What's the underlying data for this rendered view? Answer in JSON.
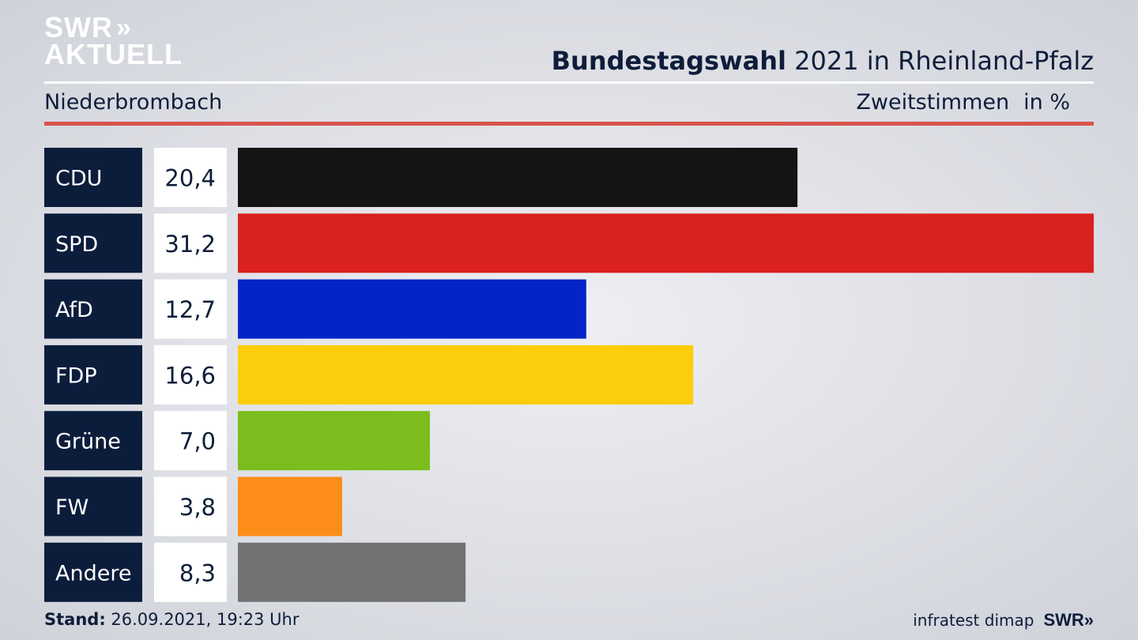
{
  "logo": {
    "line1": "SWR",
    "chevrons": "»",
    "line2": "AKTUELL"
  },
  "header": {
    "title_bold": "Bundestagswahl",
    "title_rest": " 2021 in Rheinland-Pfalz"
  },
  "subheader": {
    "region": "Niederbrombach",
    "measure": "Zweitstimmen",
    "unit": "in %"
  },
  "chart_data": {
    "type": "bar",
    "orientation": "horizontal",
    "categories": [
      "CDU",
      "SPD",
      "AfD",
      "FDP",
      "Grüne",
      "FW",
      "Andere"
    ],
    "values": [
      20.4,
      31.2,
      12.7,
      16.6,
      7.0,
      3.8,
      8.3
    ],
    "value_labels": [
      "20,4",
      "31,2",
      "12,7",
      "16,6",
      "7,0",
      "3,8",
      "8,3"
    ],
    "colors": [
      "#141414",
      "#d9211f",
      "#0325c8",
      "#fccd0a",
      "#7bbd1d",
      "#fd8d19",
      "#717274"
    ],
    "xlim": [
      0,
      31.2
    ],
    "title": "Bundestagswahl 2021 in Rheinland-Pfalz",
    "xlabel": "",
    "ylabel": ""
  },
  "colors": {
    "label_bg": "#0c1d3c",
    "value_bg": "#ffffff",
    "accent_red": "#d9534a"
  },
  "footer": {
    "stand_label": "Stand:",
    "stand_value": " 26.09.2021, 19:23 Uhr",
    "source": "infratest dimap",
    "brand": "SWR»"
  }
}
